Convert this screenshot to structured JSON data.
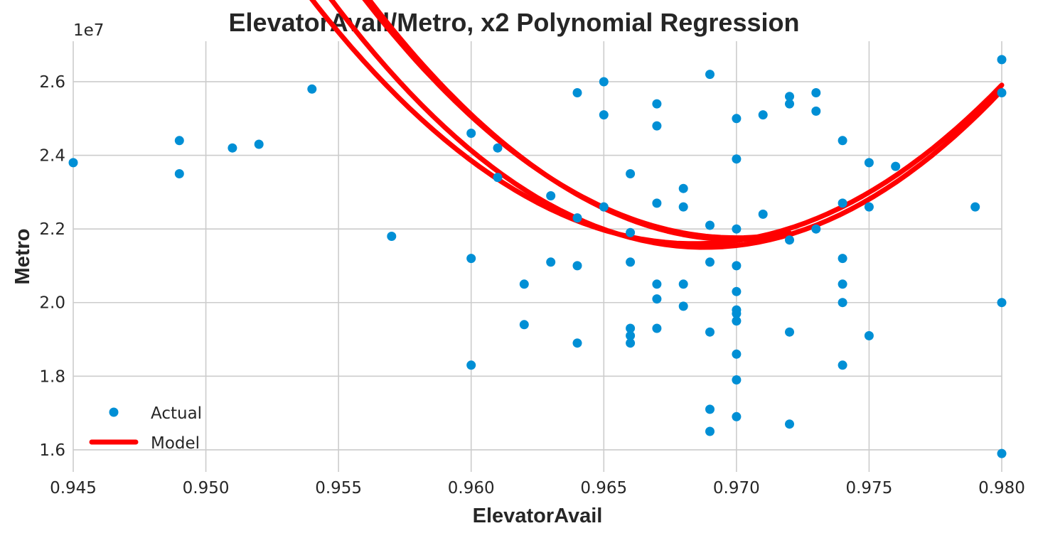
{
  "chart_data": {
    "type": "scatter",
    "title": "ElevatorAvail/Metro, x2 Polynomial Regression",
    "xlabel": "ElevatorAvail",
    "ylabel": "Metro",
    "y_offset_label": "1e7",
    "xlim": [
      0.945,
      0.98
    ],
    "ylim": [
      1.54,
      2.71
    ],
    "y_scale_note": "values shown in units of 1e7",
    "grid": true,
    "legend_position": "lower-left",
    "x_ticks": [
      "0.945",
      "0.950",
      "0.955",
      "0.960",
      "0.965",
      "0.970",
      "0.975",
      "0.980"
    ],
    "x_tick_values": [
      0.945,
      0.95,
      0.955,
      0.96,
      0.965,
      0.97,
      0.975,
      0.98
    ],
    "y_ticks": [
      "1.6",
      "1.8",
      "2.0",
      "2.2",
      "2.4",
      "2.6"
    ],
    "y_tick_values": [
      1.6,
      1.8,
      2.0,
      2.2,
      2.4,
      2.6
    ],
    "series": [
      {
        "name": "Actual",
        "kind": "scatter",
        "color": "#008fd5",
        "points": [
          [
            0.945,
            2.38
          ],
          [
            0.949,
            2.44
          ],
          [
            0.949,
            2.35
          ],
          [
            0.951,
            2.42
          ],
          [
            0.952,
            2.43
          ],
          [
            0.954,
            2.58
          ],
          [
            0.957,
            2.18
          ],
          [
            0.96,
            2.46
          ],
          [
            0.96,
            2.12
          ],
          [
            0.96,
            1.83
          ],
          [
            0.961,
            2.42
          ],
          [
            0.961,
            2.34
          ],
          [
            0.962,
            2.05
          ],
          [
            0.962,
            1.94
          ],
          [
            0.963,
            2.29
          ],
          [
            0.963,
            2.11
          ],
          [
            0.964,
            2.57
          ],
          [
            0.964,
            2.23
          ],
          [
            0.964,
            2.1
          ],
          [
            0.964,
            1.89
          ],
          [
            0.965,
            2.6
          ],
          [
            0.965,
            2.51
          ],
          [
            0.965,
            2.26
          ],
          [
            0.966,
            2.35
          ],
          [
            0.966,
            2.19
          ],
          [
            0.966,
            2.11
          ],
          [
            0.966,
            1.93
          ],
          [
            0.966,
            1.91
          ],
          [
            0.966,
            1.89
          ],
          [
            0.967,
            2.54
          ],
          [
            0.967,
            2.48
          ],
          [
            0.967,
            2.27
          ],
          [
            0.967,
            2.05
          ],
          [
            0.967,
            2.01
          ],
          [
            0.967,
            1.93
          ],
          [
            0.968,
            2.31
          ],
          [
            0.968,
            2.26
          ],
          [
            0.968,
            2.05
          ],
          [
            0.968,
            1.99
          ],
          [
            0.969,
            2.62
          ],
          [
            0.969,
            2.21
          ],
          [
            0.969,
            2.11
          ],
          [
            0.969,
            1.92
          ],
          [
            0.969,
            1.71
          ],
          [
            0.969,
            1.65
          ],
          [
            0.97,
            2.5
          ],
          [
            0.97,
            2.39
          ],
          [
            0.97,
            2.2
          ],
          [
            0.97,
            2.1
          ],
          [
            0.97,
            2.03
          ],
          [
            0.97,
            1.98
          ],
          [
            0.97,
            1.97
          ],
          [
            0.97,
            1.95
          ],
          [
            0.97,
            1.86
          ],
          [
            0.97,
            1.79
          ],
          [
            0.97,
            1.69
          ],
          [
            0.971,
            2.51
          ],
          [
            0.971,
            2.24
          ],
          [
            0.972,
            2.56
          ],
          [
            0.972,
            2.54
          ],
          [
            0.972,
            2.17
          ],
          [
            0.972,
            1.92
          ],
          [
            0.972,
            1.67
          ],
          [
            0.973,
            2.57
          ],
          [
            0.973,
            2.52
          ],
          [
            0.973,
            2.2
          ],
          [
            0.974,
            2.44
          ],
          [
            0.974,
            2.27
          ],
          [
            0.974,
            2.12
          ],
          [
            0.974,
            2.05
          ],
          [
            0.974,
            2.0
          ],
          [
            0.974,
            1.83
          ],
          [
            0.975,
            2.38
          ],
          [
            0.975,
            2.26
          ],
          [
            0.975,
            1.91
          ],
          [
            0.976,
            2.37
          ],
          [
            0.979,
            2.26
          ],
          [
            0.98,
            2.66
          ],
          [
            0.98,
            2.57
          ],
          [
            0.98,
            2.0
          ],
          [
            0.98,
            1.59
          ]
        ]
      },
      {
        "name": "Model",
        "kind": "line",
        "color": "#ff0000",
        "curves": [
          {
            "a": 0.945,
            "b": 0.98,
            "coeffs": [
              2.16,
              0.9684,
              3200,
              0
            ]
          },
          {
            "a": 0.945,
            "b": 0.98,
            "coeffs": [
              2.15,
              0.9688,
              3400,
              0
            ]
          },
          {
            "a": 0.949,
            "b": 0.972,
            "coeffs": [
              2.161,
              0.97,
              3400,
              0.01
            ]
          },
          {
            "a": 0.949,
            "b": 0.972,
            "coeffs": [
              2.16,
              0.97,
              3300,
              0.016
            ]
          }
        ]
      }
    ]
  }
}
